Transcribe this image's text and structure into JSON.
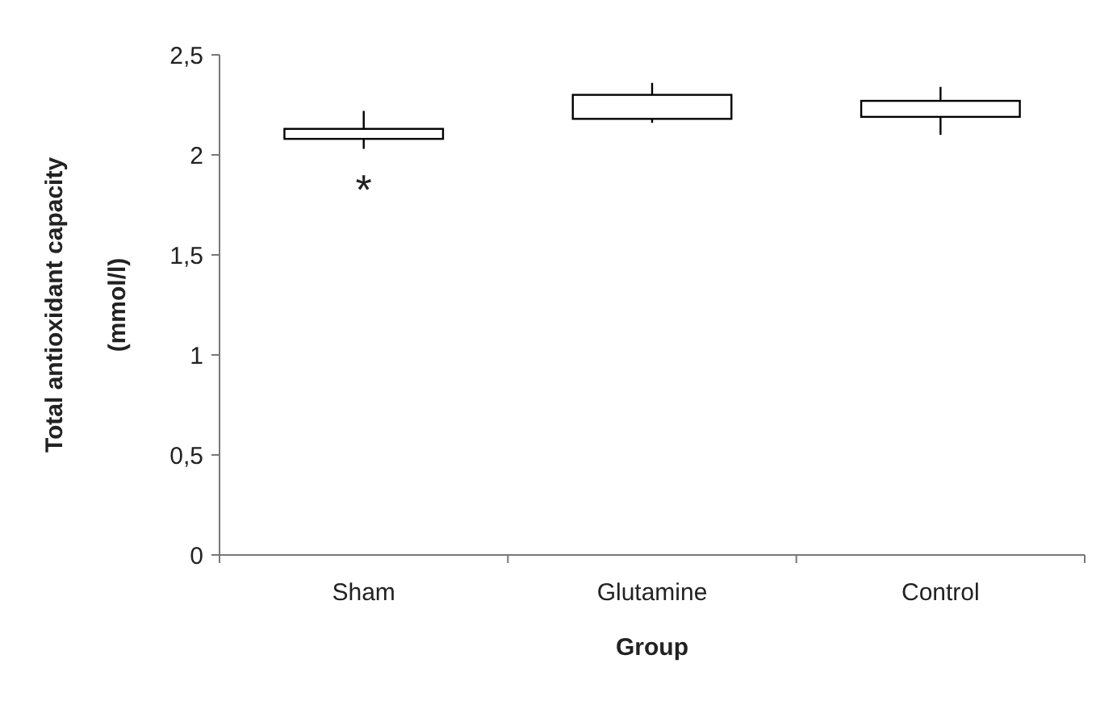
{
  "chart_data": {
    "type": "candlestick",
    "xlabel": "Group",
    "ylabel": "Total antioxidant capacity (mmol/l)",
    "categories": [
      "Sham",
      "Glutamine",
      "Control"
    ],
    "ohlc": [
      [
        2.08,
        2.22,
        2.03,
        2.13
      ],
      [
        2.18,
        2.36,
        2.16,
        2.3
      ],
      [
        2.19,
        2.34,
        2.1,
        2.27
      ]
    ],
    "color": "#ffffff",
    "ylim": [
      0,
      2.5
    ],
    "yticks": [
      {
        "value": 0,
        "label": "0"
      },
      {
        "value": 0.5,
        "label": "0,5"
      },
      {
        "value": 1,
        "label": "1"
      },
      {
        "value": 1.5,
        "label": "1,5"
      },
      {
        "value": 2,
        "label": "2"
      },
      {
        "value": 2.5,
        "label": "2,5"
      }
    ],
    "annotations": [
      "*"
    ],
    "grid": false
  }
}
